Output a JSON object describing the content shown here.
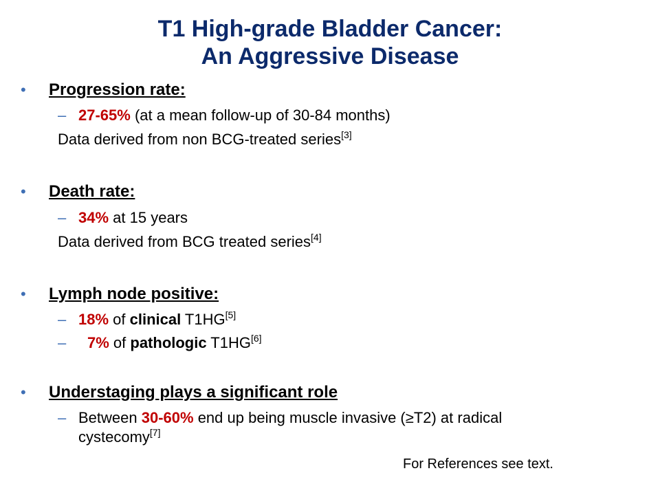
{
  "title": {
    "line1": "T1 High-grade Bladder Cancer:",
    "line2": "An Aggressive Disease"
  },
  "bullet_glyph": "•",
  "dash_glyph": "–",
  "sections": {
    "progression": {
      "heading": "Progression rate:",
      "item1_value": "27-65%",
      "item1_text": " (at a mean follow-up of 30-84 months)",
      "note_text": "Data derived from non BCG-treated series",
      "note_ref": "[3]"
    },
    "death": {
      "heading": "Death rate:",
      "item1_value": "34%",
      "item1_text": " at 15 years",
      "note_text": "Data derived from BCG treated series",
      "note_ref": "[4]"
    },
    "lymph": {
      "heading": "Lymph node positive:",
      "item1_value": "18%",
      "item1_mid": " of ",
      "item1_bold": "clinical",
      "item1_tail": " T1HG",
      "item1_ref": "[5]",
      "item2_value": "7%",
      "item2_mid": " of ",
      "item2_bold": "pathologic",
      "item2_tail": " T1HG",
      "item2_ref": "[6]"
    },
    "understaging": {
      "heading": "Understaging plays a significant role",
      "item1_pre": "Between ",
      "item1_value": "30-60%",
      "item1_text": " end up being muscle invasive (≥T2) at radical",
      "item1_line2": "cystecomy",
      "item1_ref": "[7]"
    }
  },
  "footer": "For References see text.",
  "colors": {
    "title": "#0c2a6b",
    "highlight": "#c00000",
    "bullet": "#3f6fb5"
  }
}
